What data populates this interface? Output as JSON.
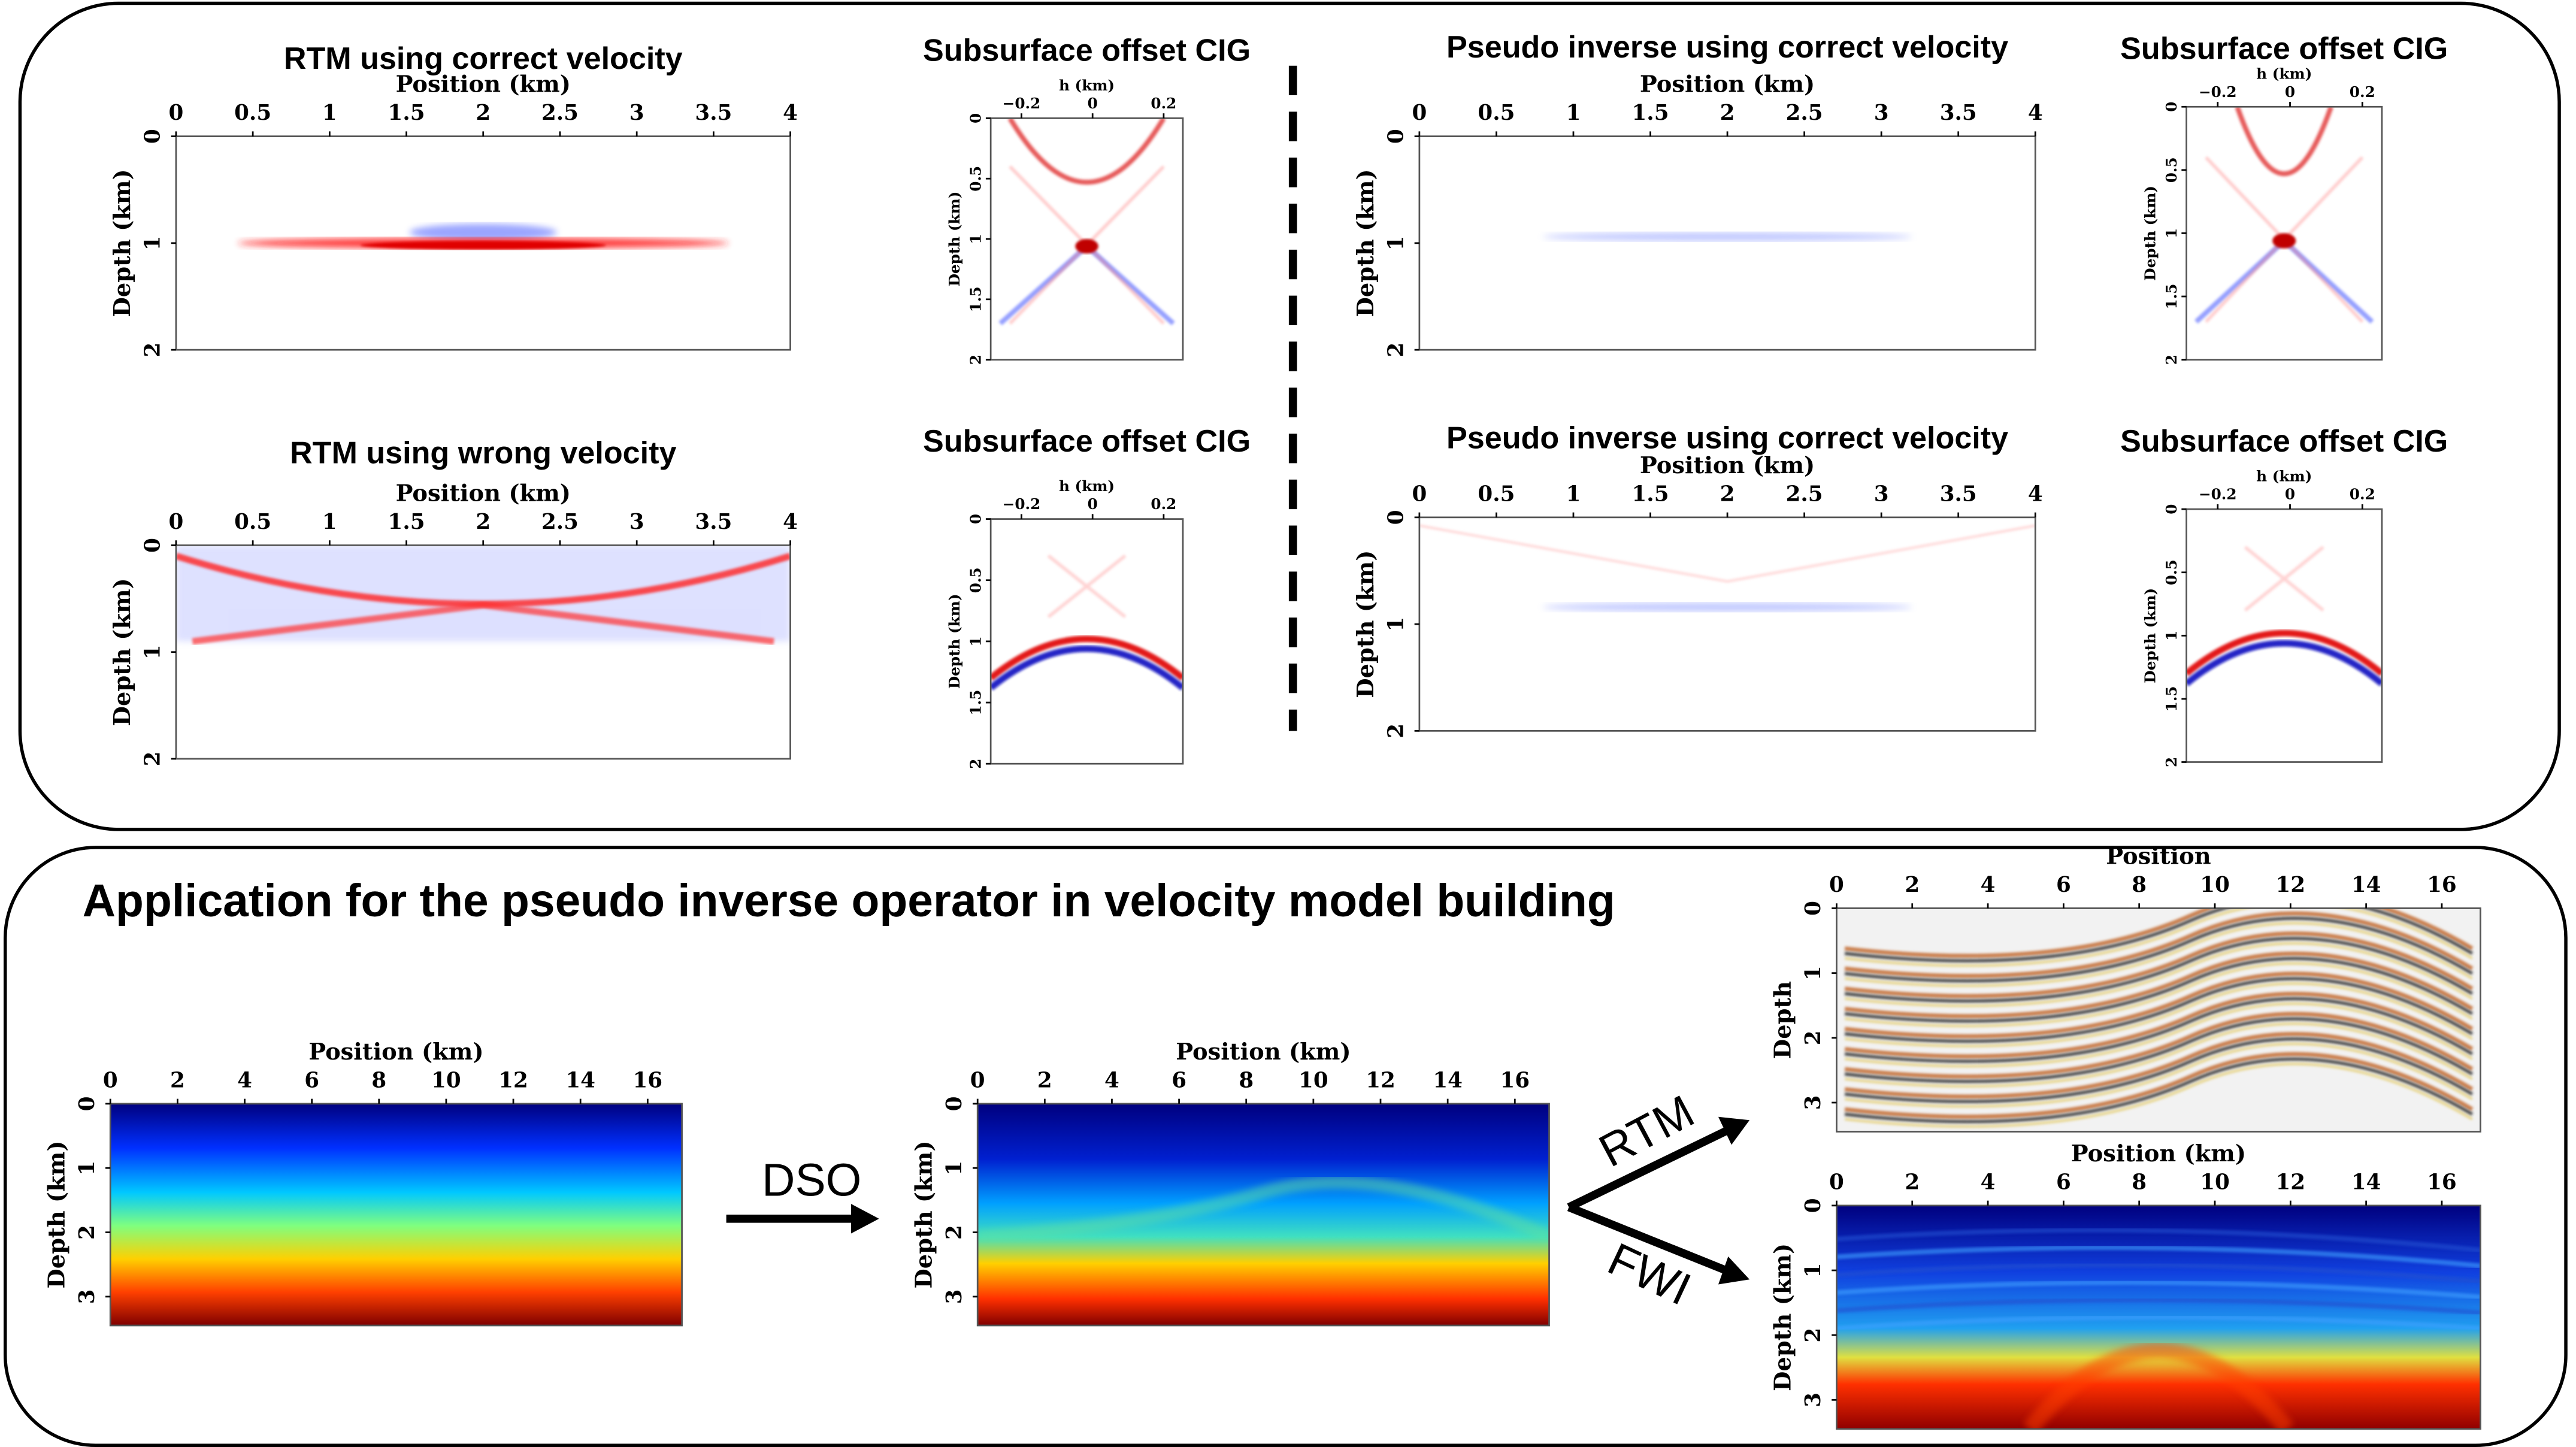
{
  "panels": [
    {
      "title": "RTM using correct velocity",
      "xlabel": "Position (km)",
      "ylabel": "Depth (km)",
      "xticks": [
        "0",
        "0.5",
        "1",
        "1.5",
        "2",
        "2.5",
        "3",
        "3.5",
        "4"
      ],
      "yticks": [
        "0",
        "1",
        "2"
      ]
    },
    {
      "title": "Subsurface offset CIG",
      "xlabel": "h (km)",
      "ylabel": "Depth (km)",
      "xticks": [
        "−0.2",
        "0",
        "0.2"
      ],
      "yticks": [
        "0",
        "0.5",
        "1",
        "1.5",
        "2"
      ]
    },
    {
      "title": "Pseudo inverse using correct velocity",
      "xlabel": "Position (km)",
      "ylabel": "Depth (km)",
      "xticks": [
        "0",
        "0.5",
        "1",
        "1.5",
        "2",
        "2.5",
        "3",
        "3.5",
        "4"
      ],
      "yticks": [
        "0",
        "1",
        "2"
      ]
    },
    {
      "title": "Subsurface offset CIG",
      "xlabel": "h (km)",
      "ylabel": "Depth (km)",
      "xticks": [
        "−0.2",
        "0",
        "0.2"
      ],
      "yticks": [
        "0",
        "0.5",
        "1",
        "1.5",
        "2"
      ]
    },
    {
      "title": "RTM using wrong velocity",
      "xlabel": "Position (km)",
      "ylabel": "Depth (km)",
      "xticks": [
        "0",
        "0.5",
        "1",
        "1.5",
        "2",
        "2.5",
        "3",
        "3.5",
        "4"
      ],
      "yticks": [
        "0",
        "1",
        "2"
      ]
    },
    {
      "title": "Subsurface offset CIG",
      "xlabel": "h (km)",
      "ylabel": "Depth (km)",
      "xticks": [
        "−0.2",
        "0",
        "0.2"
      ],
      "yticks": [
        "0",
        "0.5",
        "1",
        "1.5",
        "2"
      ]
    },
    {
      "title": "Pseudo inverse using correct velocity",
      "xlabel": "Position (km)",
      "ylabel": "Depth (km)",
      "xticks": [
        "0",
        "0.5",
        "1",
        "1.5",
        "2",
        "2.5",
        "3",
        "3.5",
        "4"
      ],
      "yticks": [
        "0",
        "1",
        "2"
      ]
    },
    {
      "title": "Subsurface offset CIG",
      "xlabel": "h (km)",
      "ylabel": "Depth (km)",
      "xticks": [
        "−0.2",
        "0",
        "0.2"
      ],
      "yticks": [
        "0",
        "0.5",
        "1",
        "1.5",
        "2"
      ]
    },
    {
      "xlabel": "Position (km)",
      "ylabel": "Depth (km)",
      "xticks": [
        "0",
        "2",
        "4",
        "6",
        "8",
        "10",
        "12",
        "14",
        "16"
      ],
      "yticks": [
        "0",
        "1",
        "2",
        "3"
      ]
    },
    {
      "xlabel": "Position (km)",
      "ylabel": "Depth (km)",
      "xticks": [
        "0",
        "2",
        "4",
        "6",
        "8",
        "10",
        "12",
        "14",
        "16"
      ],
      "yticks": [
        "0",
        "1",
        "2",
        "3"
      ]
    },
    {
      "xlabel": "Position",
      "ylabel": "Depth",
      "xticks": [
        "0",
        "2",
        "4",
        "6",
        "8",
        "10",
        "12",
        "14",
        "16"
      ],
      "yticks": [
        "0",
        "1",
        "2",
        "3"
      ]
    },
    {
      "xlabel": "Position (km)",
      "ylabel": "Depth (km)",
      "xticks": [
        "0",
        "2",
        "4",
        "6",
        "8",
        "10",
        "12",
        "14",
        "16"
      ],
      "yticks": [
        "0",
        "1",
        "2",
        "3"
      ]
    }
  ],
  "section_title": "Application for the pseudo inverse operator in velocity model building",
  "arrows": {
    "dso": "DSO",
    "rtm": "RTM",
    "fwi": "FWI"
  }
}
